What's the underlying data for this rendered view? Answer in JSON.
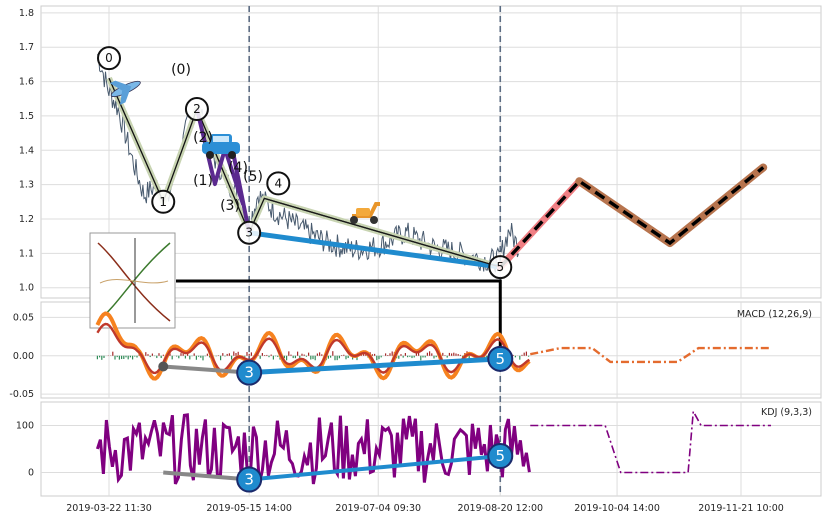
{
  "chart_data": [
    {
      "type": "line",
      "panel": "price",
      "title": "",
      "xlabel": "",
      "ylabel": "",
      "ylim": [
        0.97,
        1.82
      ],
      "yticks": [
        "1.0",
        "1.1",
        "1.2",
        "1.3",
        "1.4",
        "1.5",
        "1.6",
        "1.7",
        "1.8"
      ],
      "x_ticks": [
        "2019-03-22 11:30",
        "2019-05-15 14:00",
        "2019-07-04 09:30",
        "2019-08-20 12:00",
        "2019-10-04 14:00",
        "2019-11-21 10:00"
      ],
      "vertical_markers": [
        "2019-05-15 14:00",
        "2019-08-20 12:00"
      ],
      "grid": true,
      "price_path": [
        {
          "x": "2019-03-18",
          "y": 1.68
        },
        {
          "x": "2019-03-22",
          "y": 1.58
        },
        {
          "x": "2019-03-26",
          "y": 1.52
        },
        {
          "x": "2019-04-01",
          "y": 1.36
        },
        {
          "x": "2019-04-05",
          "y": 1.27
        },
        {
          "x": "2019-04-10",
          "y": 1.3
        },
        {
          "x": "2019-04-14",
          "y": 1.25
        },
        {
          "x": "2019-04-22",
          "y": 1.48
        },
        {
          "x": "2019-04-26",
          "y": 1.52
        },
        {
          "x": "2019-05-02",
          "y": 1.38
        },
        {
          "x": "2019-05-07",
          "y": 1.31
        },
        {
          "x": "2019-05-11",
          "y": 1.27
        },
        {
          "x": "2019-05-15",
          "y": 1.17
        },
        {
          "x": "2019-05-19",
          "y": 1.27
        },
        {
          "x": "2019-05-26",
          "y": 1.22
        },
        {
          "x": "2019-06-05",
          "y": 1.17
        },
        {
          "x": "2019-06-15",
          "y": 1.13
        },
        {
          "x": "2019-06-25",
          "y": 1.11
        },
        {
          "x": "2019-07-04",
          "y": 1.12
        },
        {
          "x": "2019-07-15",
          "y": 1.16
        },
        {
          "x": "2019-07-25",
          "y": 1.12
        },
        {
          "x": "2019-08-05",
          "y": 1.1
        },
        {
          "x": "2019-08-15",
          "y": 1.08
        },
        {
          "x": "2019-08-20",
          "y": 1.08
        },
        {
          "x": "2019-08-24",
          "y": 1.17
        },
        {
          "x": "2019-08-28",
          "y": 1.11
        }
      ],
      "wave_zigzag": [
        {
          "label": "0",
          "x": "2019-03-22 11:30",
          "y": 1.61
        },
        {
          "label": "1",
          "x": "2019-04-12 10:00",
          "y": 1.25
        },
        {
          "label": "2",
          "x": "2019-04-25 10:00",
          "y": 1.52
        },
        {
          "label": "3",
          "x": "2019-05-15 14:00",
          "y": 1.16
        },
        {
          "label": "4",
          "x": "2019-05-21 10:00",
          "y": 1.26
        },
        {
          "label": "5",
          "x": "2019-08-20 12:00",
          "y": 1.06
        }
      ],
      "sub_wave_labels": [
        "(0)",
        "(2)",
        "(1)",
        "(4)",
        "(5)",
        "(3)"
      ],
      "projection": [
        {
          "x": "2019-08-20 12:00",
          "y": 1.06
        },
        {
          "x": "2019-09-20",
          "y": 1.31
        },
        {
          "x": "2019-10-25",
          "y": 1.13
        },
        {
          "x": "2019-11-30",
          "y": 1.35
        }
      ],
      "lower_trendline": [
        {
          "x": "2019-05-15 14:00",
          "y": 1.16
        },
        {
          "x": "2019-08-20 12:00",
          "y": 1.06
        }
      ],
      "colors": {
        "price": "#485a6e",
        "zigzag": "#c8d4b2",
        "lower_trend": "#1f8bce",
        "projection_bull": "#f07f84",
        "projection_brown": "#b7744e",
        "purple": "#5b2a8f"
      },
      "icons": [
        "airplane-icon",
        "car-icon",
        "scooter-icon",
        "chart-thumbnail-icon"
      ]
    },
    {
      "type": "line",
      "panel": "macd",
      "label": "MACD (12,26,9)",
      "ylim": [
        -0.055,
        0.07
      ],
      "yticks": [
        "0.05",
        "0.00",
        "-0.05"
      ],
      "grid": true,
      "markers": [
        {
          "label": "3",
          "x": "2019-05-15 14:00",
          "y": -0.022
        },
        {
          "label": "5",
          "x": "2019-08-20 12:00",
          "y": -0.004
        }
      ],
      "colors": {
        "macd": "#f6821f",
        "signal": "#c0392b",
        "trend_gray": "#888888",
        "trend_blue": "#1f8bce"
      }
    },
    {
      "type": "line",
      "panel": "kdj",
      "label": "KDJ (9,3,3)",
      "ylim": [
        -50,
        150
      ],
      "yticks": [
        "100",
        "0"
      ],
      "grid": true,
      "markers": [
        {
          "label": "3",
          "x": "2019-05-15 14:00",
          "y": -15
        },
        {
          "label": "5",
          "x": "2019-08-20 12:00",
          "y": 35
        }
      ],
      "colors": {
        "kdj": "#800080",
        "trend_gray": "#888888",
        "trend_blue": "#1f8bce"
      }
    }
  ]
}
